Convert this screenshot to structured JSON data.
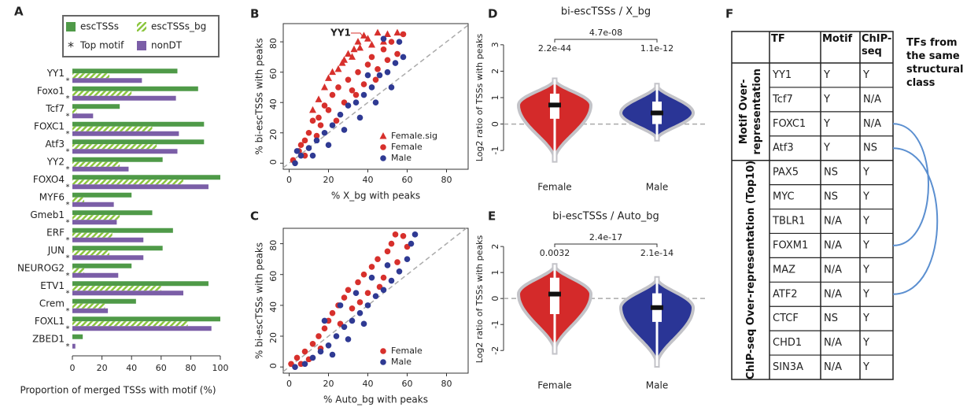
{
  "chart_data": [
    {
      "type": "hbar",
      "panel_label": "A",
      "categories": [
        "YY1",
        "Foxo1",
        "Tcf7",
        "FOXC1",
        "Atf3",
        "YY2",
        "FOXO4",
        "MYF6",
        "Gmeb1",
        "ERF",
        "JUN",
        "NEUROG2",
        "ETV1",
        "Crem",
        "FOXL1",
        "ZBED1"
      ],
      "series": [
        {
          "name": "escTSSs",
          "color": "#4f9a48",
          "values": [
            71,
            85,
            32,
            89,
            89,
            61,
            100,
            40,
            54,
            68,
            61,
            40,
            92,
            43,
            100,
            7
          ]
        },
        {
          "name": "escTSSs_bg",
          "color": "#8cc63f",
          "pattern": "hatched",
          "values": [
            25,
            40,
            3,
            54,
            57,
            32,
            75,
            8,
            32,
            27,
            25,
            8,
            60,
            22,
            78,
            0
          ]
        },
        {
          "name": "nonDT",
          "color": "#7b5ea7",
          "values": [
            47,
            70,
            14,
            72,
            71,
            38,
            92,
            28,
            30,
            48,
            48,
            31,
            75,
            24,
            94,
            2
          ]
        }
      ],
      "marker_legend": {
        "symbol": "*",
        "label": "Top motif"
      },
      "xlabel": "Proportion of merged TSSs with motif (%)",
      "xlim": [
        0,
        100
      ],
      "xticks": [
        0,
        20,
        40,
        60,
        80,
        100
      ]
    },
    {
      "type": "scatter",
      "panel_label": "B",
      "xlabel": "% X_bg with peaks",
      "ylabel": "% bi-escTSSs with peaks",
      "xlim": [
        -3,
        91
      ],
      "ylim": [
        -4,
        92
      ],
      "xticks": [
        0,
        20,
        40,
        60,
        80
      ],
      "yticks": [
        0,
        20,
        40,
        60,
        80
      ],
      "diagonal": true,
      "annotation": "YY1",
      "series": [
        {
          "name": "Female.sig",
          "color": "#d7302c",
          "marker": "triangle",
          "x": [
            20,
            25,
            28,
            30,
            33,
            35,
            38,
            40,
            45,
            50,
            55,
            22,
            18,
            15,
            27,
            42,
            48,
            32,
            36,
            12
          ],
          "y": [
            56,
            62,
            68,
            72,
            75,
            80,
            84,
            82,
            86,
            85,
            86,
            60,
            50,
            42,
            66,
            78,
            80,
            70,
            76,
            35
          ]
        },
        {
          "name": "Female",
          "color": "#d7302c",
          "marker": "circle",
          "x": [
            2,
            5,
            8,
            10,
            12,
            15,
            18,
            20,
            22,
            25,
            28,
            30,
            32,
            35,
            38,
            40,
            42,
            45,
            48,
            50,
            52,
            55,
            58,
            8,
            14,
            24,
            34,
            44,
            6,
            16
          ],
          "y": [
            2,
            8,
            15,
            20,
            28,
            30,
            38,
            35,
            45,
            50,
            40,
            55,
            48,
            60,
            52,
            65,
            70,
            62,
            75,
            68,
            80,
            72,
            85,
            5,
            18,
            28,
            45,
            55,
            12,
            25
          ]
        },
        {
          "name": "Male",
          "color": "#2f3a93",
          "marker": "circle",
          "x": [
            3,
            6,
            10,
            14,
            18,
            22,
            26,
            30,
            34,
            38,
            42,
            46,
            50,
            54,
            58,
            4,
            12,
            20,
            28,
            36,
            44,
            52,
            56,
            48,
            40
          ],
          "y": [
            0,
            5,
            10,
            15,
            20,
            25,
            32,
            38,
            40,
            45,
            50,
            58,
            60,
            66,
            70,
            8,
            5,
            12,
            22,
            30,
            40,
            50,
            80,
            82,
            58
          ]
        }
      ]
    },
    {
      "type": "scatter",
      "panel_label": "C",
      "xlabel": "% Auto_bg with peaks",
      "ylabel": "% bi-escTSSs with peaks",
      "xlim": [
        -3,
        91
      ],
      "ylim": [
        -4,
        90
      ],
      "xticks": [
        0,
        20,
        40,
        60,
        80
      ],
      "yticks": [
        0,
        20,
        40,
        60,
        80
      ],
      "diagonal": true,
      "series": [
        {
          "name": "Female",
          "color": "#d7302c",
          "marker": "circle",
          "x": [
            1,
            4,
            8,
            12,
            15,
            18,
            20,
            22,
            25,
            28,
            30,
            32,
            35,
            38,
            40,
            42,
            45,
            48,
            50,
            52,
            55,
            58,
            60,
            10,
            16,
            26,
            36,
            46,
            54,
            6
          ],
          "y": [
            2,
            6,
            10,
            15,
            20,
            25,
            30,
            35,
            40,
            45,
            50,
            38,
            55,
            60,
            48,
            65,
            70,
            58,
            75,
            80,
            68,
            85,
            78,
            5,
            12,
            28,
            42,
            52,
            86,
            2
          ]
        },
        {
          "name": "Male",
          "color": "#2f3a93",
          "marker": "circle",
          "x": [
            3,
            8,
            12,
            16,
            20,
            24,
            28,
            32,
            36,
            40,
            44,
            48,
            52,
            56,
            60,
            62,
            64,
            18,
            26,
            34,
            42,
            50,
            22,
            30,
            38
          ],
          "y": [
            0,
            2,
            6,
            10,
            14,
            20,
            26,
            30,
            35,
            40,
            46,
            50,
            56,
            62,
            70,
            80,
            86,
            30,
            40,
            48,
            58,
            66,
            8,
            18,
            28
          ]
        }
      ]
    },
    {
      "type": "violin",
      "panel_label": "D",
      "title": "bi-escTSSs / X_bg",
      "ylabel": "Log2 ratio of TSSs with peaks",
      "categories": [
        "Female",
        "Male"
      ],
      "colors": [
        "#d42a2a",
        "#2a3596"
      ],
      "stats": [
        {
          "min": -1.4,
          "q1": 0.2,
          "median": 0.72,
          "q3": 1.15,
          "max": 1.7
        },
        {
          "min": -0.6,
          "q1": 0.0,
          "median": 0.42,
          "q3": 0.85,
          "max": 1.5
        }
      ],
      "category_pvalues": [
        "2.2e-44",
        "1.1e-12"
      ],
      "comparison_pvalue": "4.7e-08",
      "ylim": [
        -1.8,
        3.8
      ],
      "yticks": [
        -1,
        0,
        1,
        2,
        3
      ]
    },
    {
      "type": "violin",
      "panel_label": "E",
      "title": "bi-escTSSs / Auto_bg",
      "ylabel": "Log2 ratio of TSSs with peaks",
      "categories": [
        "Female",
        "Male"
      ],
      "colors": [
        "#d42a2a",
        "#2a3596"
      ],
      "stats": [
        {
          "min": -2.1,
          "q1": -0.6,
          "median": 0.17,
          "q3": 0.8,
          "max": 1.3
        },
        {
          "min": -2.6,
          "q1": -0.9,
          "median": -0.35,
          "q3": 0.2,
          "max": 0.8
        }
      ],
      "category_pvalues": [
        "0.0032",
        "2.1e-14"
      ],
      "comparison_pvalue": "2.4e-17",
      "ylim": [
        -2.75,
        2.7
      ],
      "yticks": [
        -2,
        -1,
        0,
        1,
        2
      ]
    }
  ],
  "table": {
    "panel_label": "F",
    "header": [
      "TF",
      "Motif",
      "ChIP-seq"
    ],
    "note": "TFs from the same structural class",
    "groups": [
      {
        "label": "Motif Over-representation",
        "rows": [
          [
            "YY1",
            "Y",
            "Y"
          ],
          [
            "Tcf7",
            "Y",
            "N/A"
          ],
          [
            "FOXC1",
            "Y",
            "N/A"
          ],
          [
            "Atf3",
            "Y",
            "NS"
          ]
        ]
      },
      {
        "label": "ChIP-seq Over-representation (Top10)",
        "rows": [
          [
            "PAX5",
            "NS",
            "Y"
          ],
          [
            "MYC",
            "NS",
            "Y"
          ],
          [
            "TBLR1",
            "N/A",
            "Y"
          ],
          [
            "FOXM1",
            "N/A",
            "Y"
          ],
          [
            "MAZ",
            "N/A",
            "Y"
          ],
          [
            "ATF2",
            "N/A",
            "Y"
          ],
          [
            "CTCF",
            "NS",
            "Y"
          ],
          [
            "CHD1",
            "N/A",
            "Y"
          ],
          [
            "SIN3A",
            "N/A",
            "Y"
          ]
        ]
      }
    ]
  }
}
